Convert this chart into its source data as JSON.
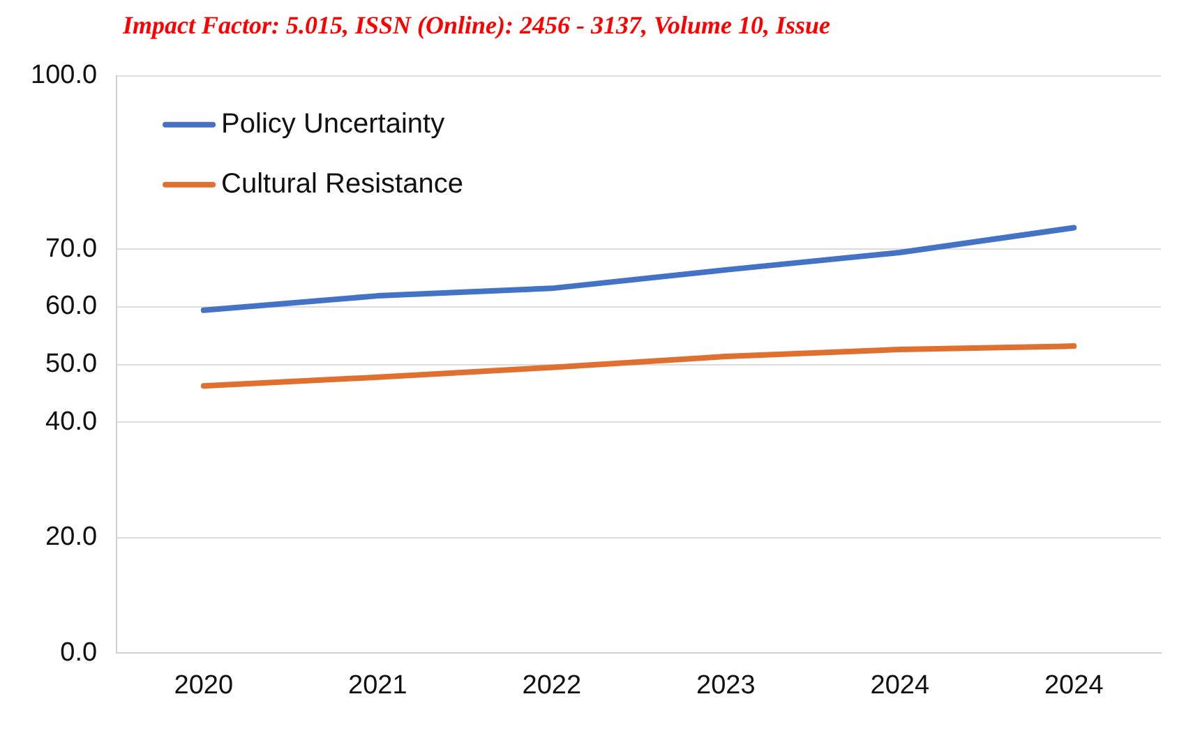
{
  "chart_data": {
    "type": "line",
    "annotations": [
      "Impact Factor: 5.015, ISSN (Online): 2456 - 3137, Volume 10, Issue"
    ],
    "categories": [
      "2020",
      "2021",
      "2022",
      "2023",
      "2024",
      "2024"
    ],
    "series": [
      {
        "name": "Policy Uncertainty",
        "color": "#4472c4",
        "values": [
          59.4,
          61.9,
          63.2,
          66.4,
          69.4,
          73.7
        ]
      },
      {
        "name": "Cultural Resistance",
        "color": "#e07030",
        "values": [
          46.3,
          47.8,
          49.5,
          51.4,
          52.6,
          53.2
        ]
      }
    ],
    "ylim": [
      0,
      100
    ],
    "yticks": [
      {
        "value": 0,
        "label": "0.0"
      },
      {
        "value": 20,
        "label": "20.0"
      },
      {
        "value": 40,
        "label": "40.0"
      },
      {
        "value": 50,
        "label": "50.0"
      },
      {
        "value": 60,
        "label": "60.0"
      },
      {
        "value": 70,
        "label": "70.0"
      },
      {
        "value": 100,
        "label": "100.0"
      }
    ],
    "grid": "y",
    "legend": "top left",
    "marker": "none",
    "line_style": "solid"
  }
}
